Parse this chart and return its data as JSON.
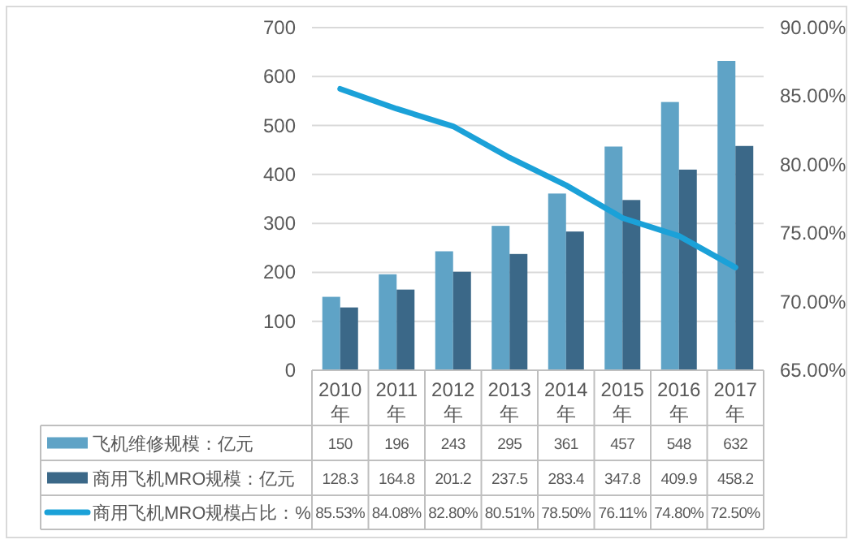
{
  "chart_data": {
    "type": "bar",
    "categories": [
      "2010年",
      "2011年",
      "2012年",
      "2013年",
      "2014年",
      "2015年",
      "2016年",
      "2017年"
    ],
    "series": [
      {
        "name": "飞机维修规模：亿元",
        "color": "#5fa3c6",
        "values": [
          150,
          196,
          243,
          295,
          361,
          457,
          548,
          632
        ],
        "value_labels": [
          "150",
          "196",
          "243",
          "295",
          "361",
          "457",
          "548",
          "632"
        ]
      },
      {
        "name": "商用飞机MRO规模：亿元",
        "color": "#3b6888",
        "values": [
          128.3,
          164.8,
          201.2,
          237.5,
          283.4,
          347.8,
          409.9,
          458.2
        ],
        "value_labels": [
          "128.3",
          "164.8",
          "201.2",
          "237.5",
          "283.4",
          "347.8",
          "409.9",
          "458.2"
        ]
      },
      {
        "name": "商用飞机MRO规模占比：%",
        "type": "line",
        "axis": "y2",
        "color": "#1ba1d8",
        "values": [
          85.53,
          84.08,
          82.8,
          80.51,
          78.5,
          76.11,
          74.8,
          72.5
        ],
        "value_labels": [
          "85.53%",
          "84.08%",
          "82.80%",
          "80.51%",
          "78.50%",
          "76.11%",
          "74.80%",
          "72.50%"
        ]
      }
    ],
    "ylim": [
      0,
      700
    ],
    "yticks": [
      0,
      100,
      200,
      300,
      400,
      500,
      600,
      700
    ],
    "y2lim": [
      65,
      90
    ],
    "y2ticks": [
      {
        "value": 65,
        "label": "65.00%"
      },
      {
        "value": 70,
        "label": "70.00%"
      },
      {
        "value": 75,
        "label": "75.00%"
      },
      {
        "value": 80,
        "label": "80.00%"
      },
      {
        "value": 85,
        "label": "85.00%"
      },
      {
        "value": 90,
        "label": "90.00%"
      }
    ],
    "grid": "y",
    "legend": "bottom",
    "line_style": "solid",
    "marker": "none"
  }
}
